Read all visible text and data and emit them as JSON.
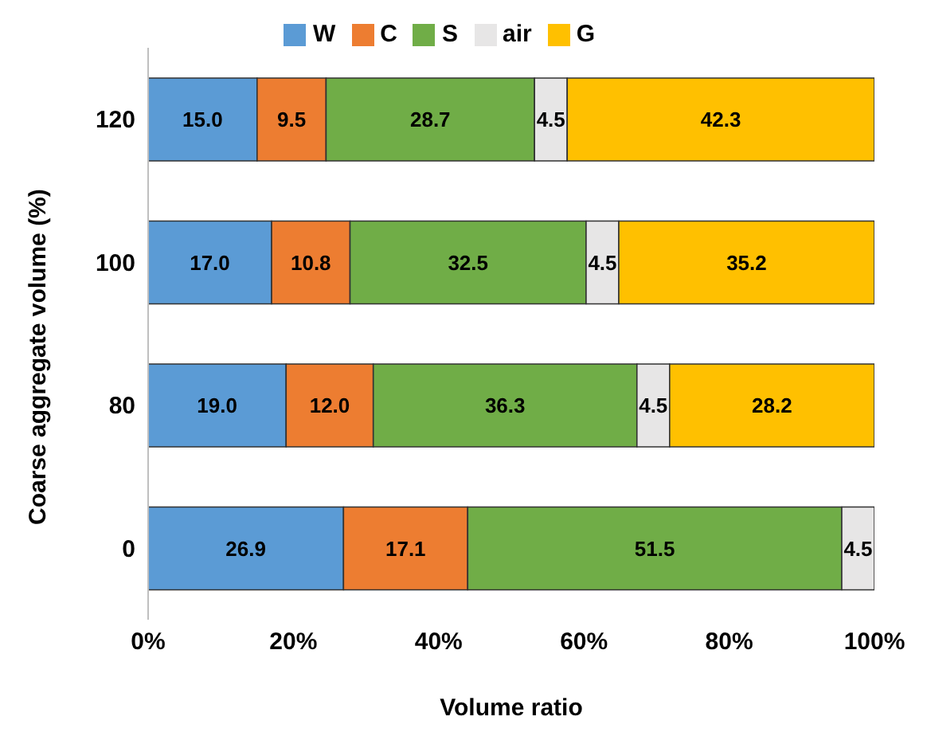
{
  "chart_data": {
    "type": "bar",
    "orientation": "horizontal",
    "stacked": true,
    "xlabel": "Volume ratio",
    "ylabel": "Coarse aggregate volume (%)",
    "categories": [
      "120",
      "100",
      "80",
      "0"
    ],
    "series": [
      {
        "name": "W",
        "color": "#5b9bd5",
        "values": [
          15.0,
          17.0,
          19.0,
          26.9
        ],
        "value_labels": [
          "15.0",
          "17.0",
          "19.0",
          "26.9"
        ]
      },
      {
        "name": "C",
        "color": "#ed7d31",
        "values": [
          9.5,
          10.8,
          12.0,
          17.1
        ],
        "value_labels": [
          "9.5",
          "10.8",
          "12.0",
          "17.1"
        ]
      },
      {
        "name": "S",
        "color": "#70ad47",
        "values": [
          28.7,
          32.5,
          36.3,
          51.5
        ],
        "value_labels": [
          "28.7",
          "32.5",
          "36.3",
          "51.5"
        ]
      },
      {
        "name": "air",
        "color": "#e7e6e6",
        "values": [
          4.5,
          4.5,
          4.5,
          4.5
        ],
        "value_labels": [
          "4.5",
          "4.5",
          "4.5",
          "4.5"
        ]
      },
      {
        "name": "G",
        "color": "#ffc000",
        "values": [
          42.3,
          35.2,
          28.2,
          null
        ],
        "value_labels": [
          "42.3",
          "35.2",
          "28.2",
          null
        ]
      }
    ],
    "xlim": [
      0,
      100
    ],
    "xticks": [
      {
        "value": 0,
        "label": "0%"
      },
      {
        "value": 20,
        "label": "20%"
      },
      {
        "value": 40,
        "label": "40%"
      },
      {
        "value": 60,
        "label": "60%"
      },
      {
        "value": 80,
        "label": "80%"
      },
      {
        "value": 100,
        "label": "100%"
      }
    ],
    "grid": false,
    "legend": "top"
  }
}
